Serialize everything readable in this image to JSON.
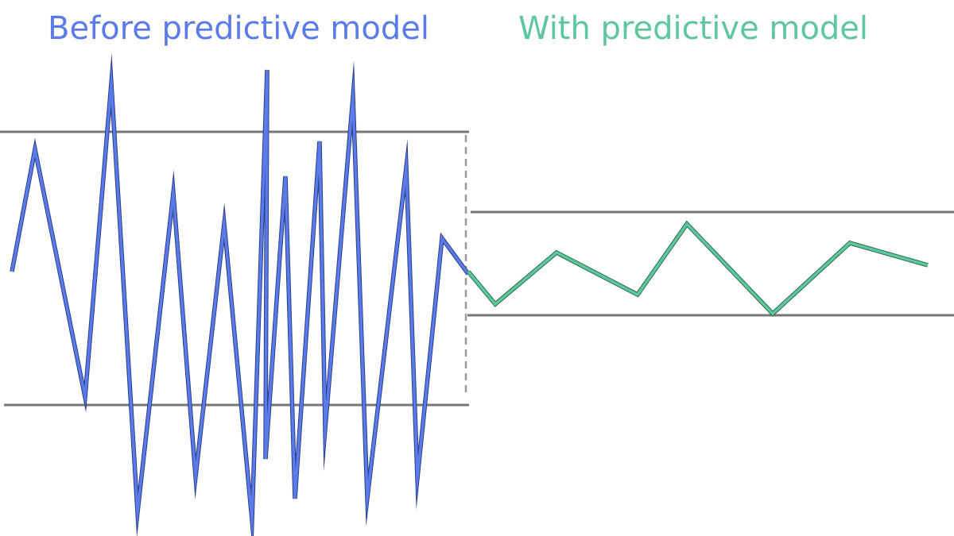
{
  "panels": [
    {
      "title": "Before predictive model"
    },
    {
      "title": "With predictive model"
    }
  ]
}
